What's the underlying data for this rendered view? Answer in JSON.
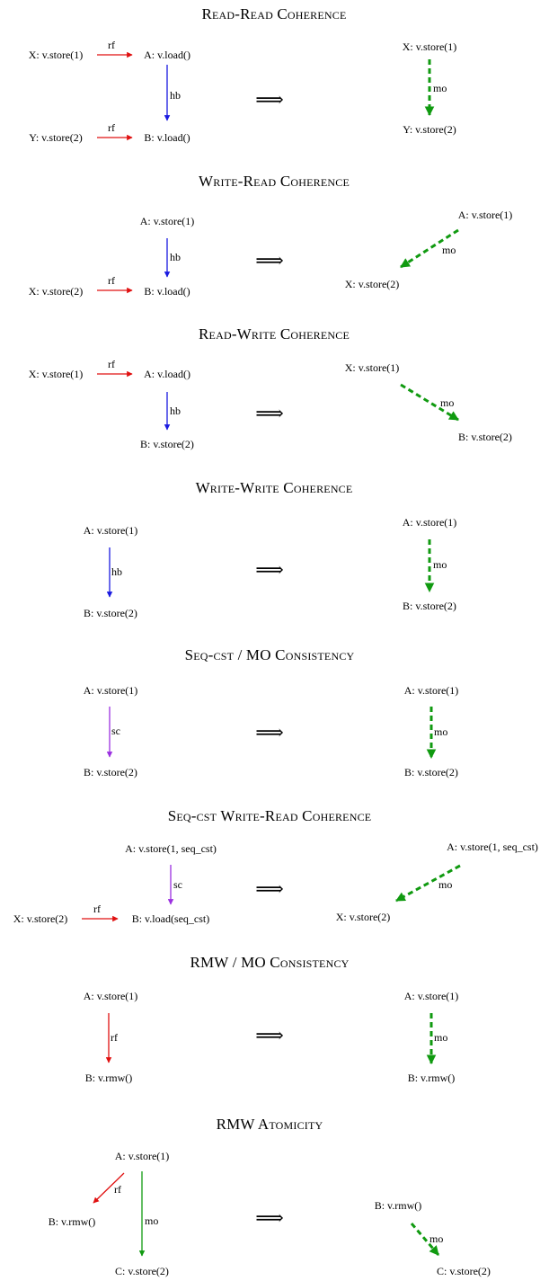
{
  "colors": {
    "rf": "#e01010",
    "hb": "#1a1ae0",
    "sc": "#9b30e0",
    "mo": "#109a10"
  },
  "implies_symbol": "⟹",
  "rules": [
    {
      "title": "Read-Read Coherence",
      "nodes": [
        {
          "label": "X: v.store(1)"
        },
        {
          "label": "A: v.load()"
        },
        {
          "label": "Y: v.store(2)"
        },
        {
          "label": "B: v.load()"
        },
        {
          "label": "X: v.store(1)"
        },
        {
          "label": "Y: v.store(2)"
        }
      ],
      "edges": [
        {
          "label": "rf",
          "color": "rf"
        },
        {
          "label": "hb",
          "color": "hb"
        },
        {
          "label": "rf",
          "color": "rf"
        },
        {
          "label": "mo",
          "color": "mo",
          "dashed": true
        }
      ]
    },
    {
      "title": "Write-Read Coherence",
      "nodes": [
        {
          "label": "A: v.store(1)"
        },
        {
          "label": "X: v.store(2)"
        },
        {
          "label": "B: v.load()"
        },
        {
          "label": "A: v.store(1)"
        },
        {
          "label": "X: v.store(2)"
        }
      ],
      "edges": [
        {
          "label": "hb",
          "color": "hb"
        },
        {
          "label": "rf",
          "color": "rf"
        },
        {
          "label": "mo",
          "color": "mo",
          "dashed": true
        }
      ]
    },
    {
      "title": "Read-Write Coherence",
      "nodes": [
        {
          "label": "X: v.store(1)"
        },
        {
          "label": "A: v.load()"
        },
        {
          "label": "B: v.store(2)"
        },
        {
          "label": "X: v.store(1)"
        },
        {
          "label": "B: v.store(2)"
        }
      ],
      "edges": [
        {
          "label": "rf",
          "color": "rf"
        },
        {
          "label": "hb",
          "color": "hb"
        },
        {
          "label": "mo",
          "color": "mo",
          "dashed": true
        }
      ]
    },
    {
      "title": "Write-Write Coherence",
      "nodes": [
        {
          "label": "A: v.store(1)"
        },
        {
          "label": "B: v.store(2)"
        },
        {
          "label": "A: v.store(1)"
        },
        {
          "label": "B: v.store(2)"
        }
      ],
      "edges": [
        {
          "label": "hb",
          "color": "hb"
        },
        {
          "label": "mo",
          "color": "mo",
          "dashed": true
        }
      ]
    },
    {
      "title": "Seq-cst / MO Consistency",
      "nodes": [
        {
          "label": "A: v.store(1)"
        },
        {
          "label": "B: v.store(2)"
        },
        {
          "label": "A: v.store(1)"
        },
        {
          "label": "B: v.store(2)"
        }
      ],
      "edges": [
        {
          "label": "sc",
          "color": "sc"
        },
        {
          "label": "mo",
          "color": "mo",
          "dashed": true
        }
      ]
    },
    {
      "title": "Seq-cst Write-Read Coherence",
      "nodes": [
        {
          "label": "A: v.store(1, seq_cst)"
        },
        {
          "label": "X: v.store(2)"
        },
        {
          "label": "B: v.load(seq_cst)"
        },
        {
          "label": "A: v.store(1, seq_cst)"
        },
        {
          "label": "X: v.store(2)"
        }
      ],
      "edges": [
        {
          "label": "sc",
          "color": "sc"
        },
        {
          "label": "rf",
          "color": "rf"
        },
        {
          "label": "mo",
          "color": "mo",
          "dashed": true
        }
      ]
    },
    {
      "title": "RMW / MO Consistency",
      "nodes": [
        {
          "label": "A: v.store(1)"
        },
        {
          "label": "B: v.rmw()"
        },
        {
          "label": "A: v.store(1)"
        },
        {
          "label": "B: v.rmw()"
        }
      ],
      "edges": [
        {
          "label": "rf",
          "color": "rf"
        },
        {
          "label": "mo",
          "color": "mo",
          "dashed": true
        }
      ]
    },
    {
      "title": "RMW Atomicity",
      "nodes": [
        {
          "label": "A: v.store(1)"
        },
        {
          "label": "B: v.rmw()"
        },
        {
          "label": "C: v.store(2)"
        },
        {
          "label": "B: v.rmw()"
        },
        {
          "label": "C: v.store(2)"
        }
      ],
      "edges": [
        {
          "label": "rf",
          "color": "rf"
        },
        {
          "label": "mo",
          "color": "mo"
        },
        {
          "label": "mo",
          "color": "mo",
          "dashed": true
        }
      ]
    }
  ]
}
